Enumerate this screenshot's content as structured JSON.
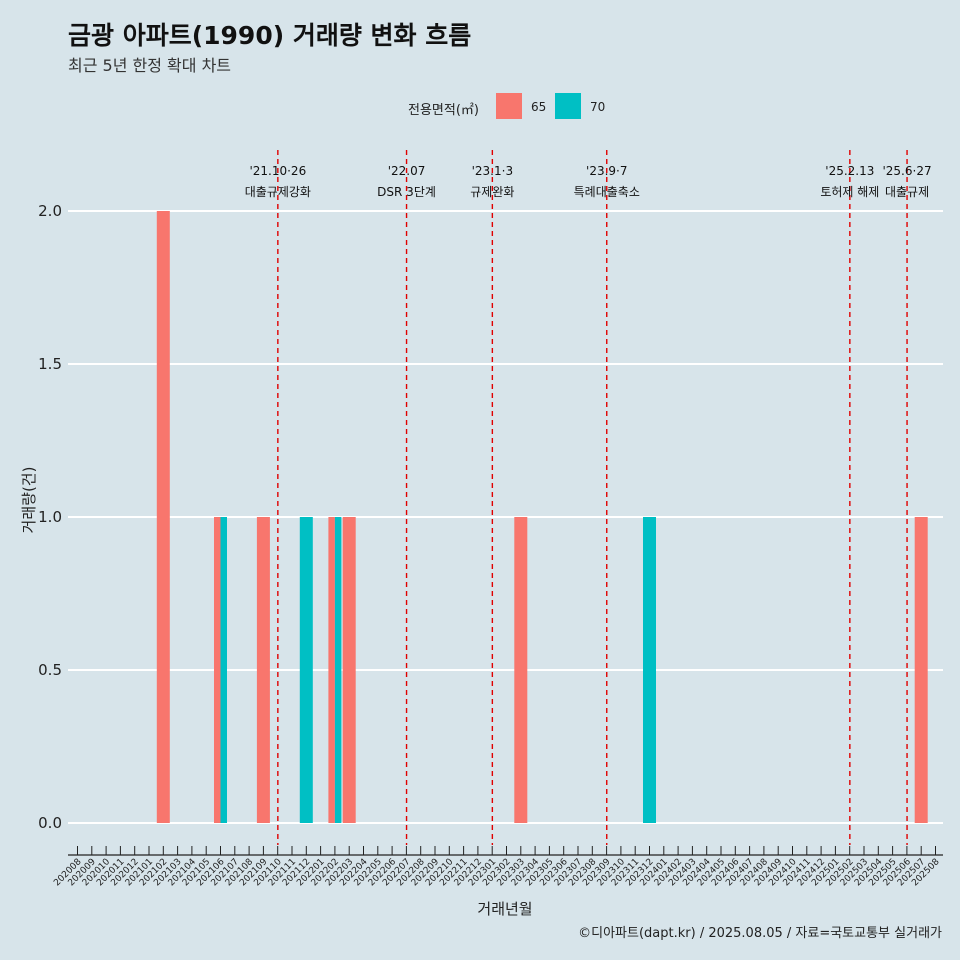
{
  "header": {
    "title": "금광 아파트(1990) 거래량 변화 흐름",
    "subtitle": "최근 5년 한정 확대 차트"
  },
  "legend": {
    "title": "전용면적(㎡)",
    "items": [
      {
        "label": "65",
        "color": "#F8766D"
      },
      {
        "label": "70",
        "color": "#00BFC4"
      }
    ]
  },
  "footer": "©디아파트(dapt.kr) / 2025.08.05 / 자료=국토교통부 실거래가",
  "chart_data": {
    "type": "bar",
    "xlabel": "거래년월",
    "ylabel": "거래량(건)",
    "ylim": [
      0,
      2
    ],
    "yticks": [
      0.0,
      0.5,
      1.0,
      1.5,
      2.0
    ],
    "ytick_labels": [
      "0.0",
      "0.5",
      "1.0",
      "1.5",
      "2.0"
    ],
    "categories": [
      "202008",
      "202009",
      "202010",
      "202011",
      "202012",
      "202101",
      "202102",
      "202103",
      "202104",
      "202105",
      "202106",
      "202107",
      "202108",
      "202109",
      "202110",
      "202111",
      "202112",
      "202201",
      "202202",
      "202203",
      "202204",
      "202205",
      "202206",
      "202207",
      "202208",
      "202209",
      "202210",
      "202211",
      "202212",
      "202301",
      "202302",
      "202303",
      "202304",
      "202305",
      "202306",
      "202307",
      "202308",
      "202309",
      "202310",
      "202311",
      "202312",
      "202401",
      "202402",
      "202403",
      "202404",
      "202405",
      "202406",
      "202407",
      "202408",
      "202409",
      "202410",
      "202411",
      "202412",
      "202501",
      "202502",
      "202503",
      "202504",
      "202505",
      "202506",
      "202507",
      "202508"
    ],
    "series": [
      {
        "name": "65",
        "color": "#F8766D",
        "points": [
          {
            "x": "202102",
            "y": 2
          },
          {
            "x": "202106",
            "y": 1
          },
          {
            "x": "202109",
            "y": 1
          },
          {
            "x": "202202",
            "y": 1
          },
          {
            "x": "202203",
            "y": 1
          },
          {
            "x": "202303",
            "y": 1
          },
          {
            "x": "202507",
            "y": 1
          }
        ]
      },
      {
        "name": "70",
        "color": "#00BFC4",
        "points": [
          {
            "x": "202106",
            "y": 1
          },
          {
            "x": "202112",
            "y": 1
          },
          {
            "x": "202202",
            "y": 1
          },
          {
            "x": "202312",
            "y": 1
          }
        ]
      }
    ],
    "events": [
      {
        "date_label": "'21.10·26",
        "text": "대출규제강화",
        "at": "202110"
      },
      {
        "date_label": "'22.07",
        "text": "DSR 3단계",
        "at": "202207"
      },
      {
        "date_label": "'23.1·3",
        "text": "규제완화",
        "at": "202301"
      },
      {
        "date_label": "'23.9·7",
        "text": "특례대출축소",
        "at": "202309"
      },
      {
        "date_label": "'25.2.13",
        "text": "토허제 해제",
        "at": "202502"
      },
      {
        "date_label": "'25.6·27",
        "text": "대출규제",
        "at": "202506"
      }
    ],
    "grid": true,
    "legend_position": "top"
  }
}
